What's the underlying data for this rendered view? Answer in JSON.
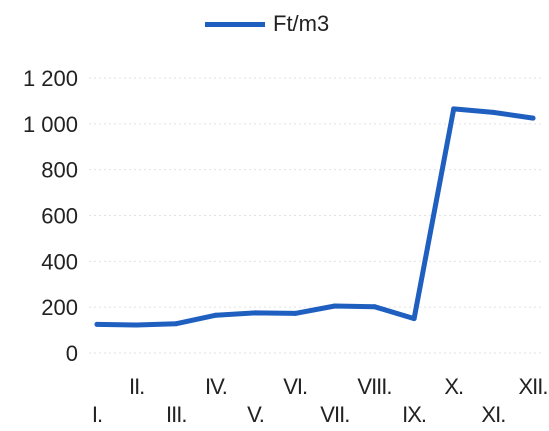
{
  "chart_data": {
    "type": "line",
    "title": "",
    "xlabel": "",
    "ylabel": "",
    "categories": [
      "I.",
      "II.",
      "III.",
      "IV.",
      "V.",
      "VI.",
      "VII.",
      "VIII.",
      "IX.",
      "X.",
      "XI.",
      "XII."
    ],
    "series": [
      {
        "name": "Ft/m3",
        "color": "#1f5fbf",
        "values": [
          125,
          122,
          128,
          165,
          175,
          173,
          205,
          202,
          150,
          1065,
          1050,
          1025
        ]
      }
    ],
    "ylim": [
      0,
      1200
    ],
    "yticks": [
      0,
      200,
      400,
      600,
      800,
      1000,
      1200
    ],
    "ytick_labels": [
      "0",
      "200",
      "400",
      "600",
      "800",
      "1 000",
      "1 200"
    ],
    "grid": true,
    "legend_position": "top"
  }
}
